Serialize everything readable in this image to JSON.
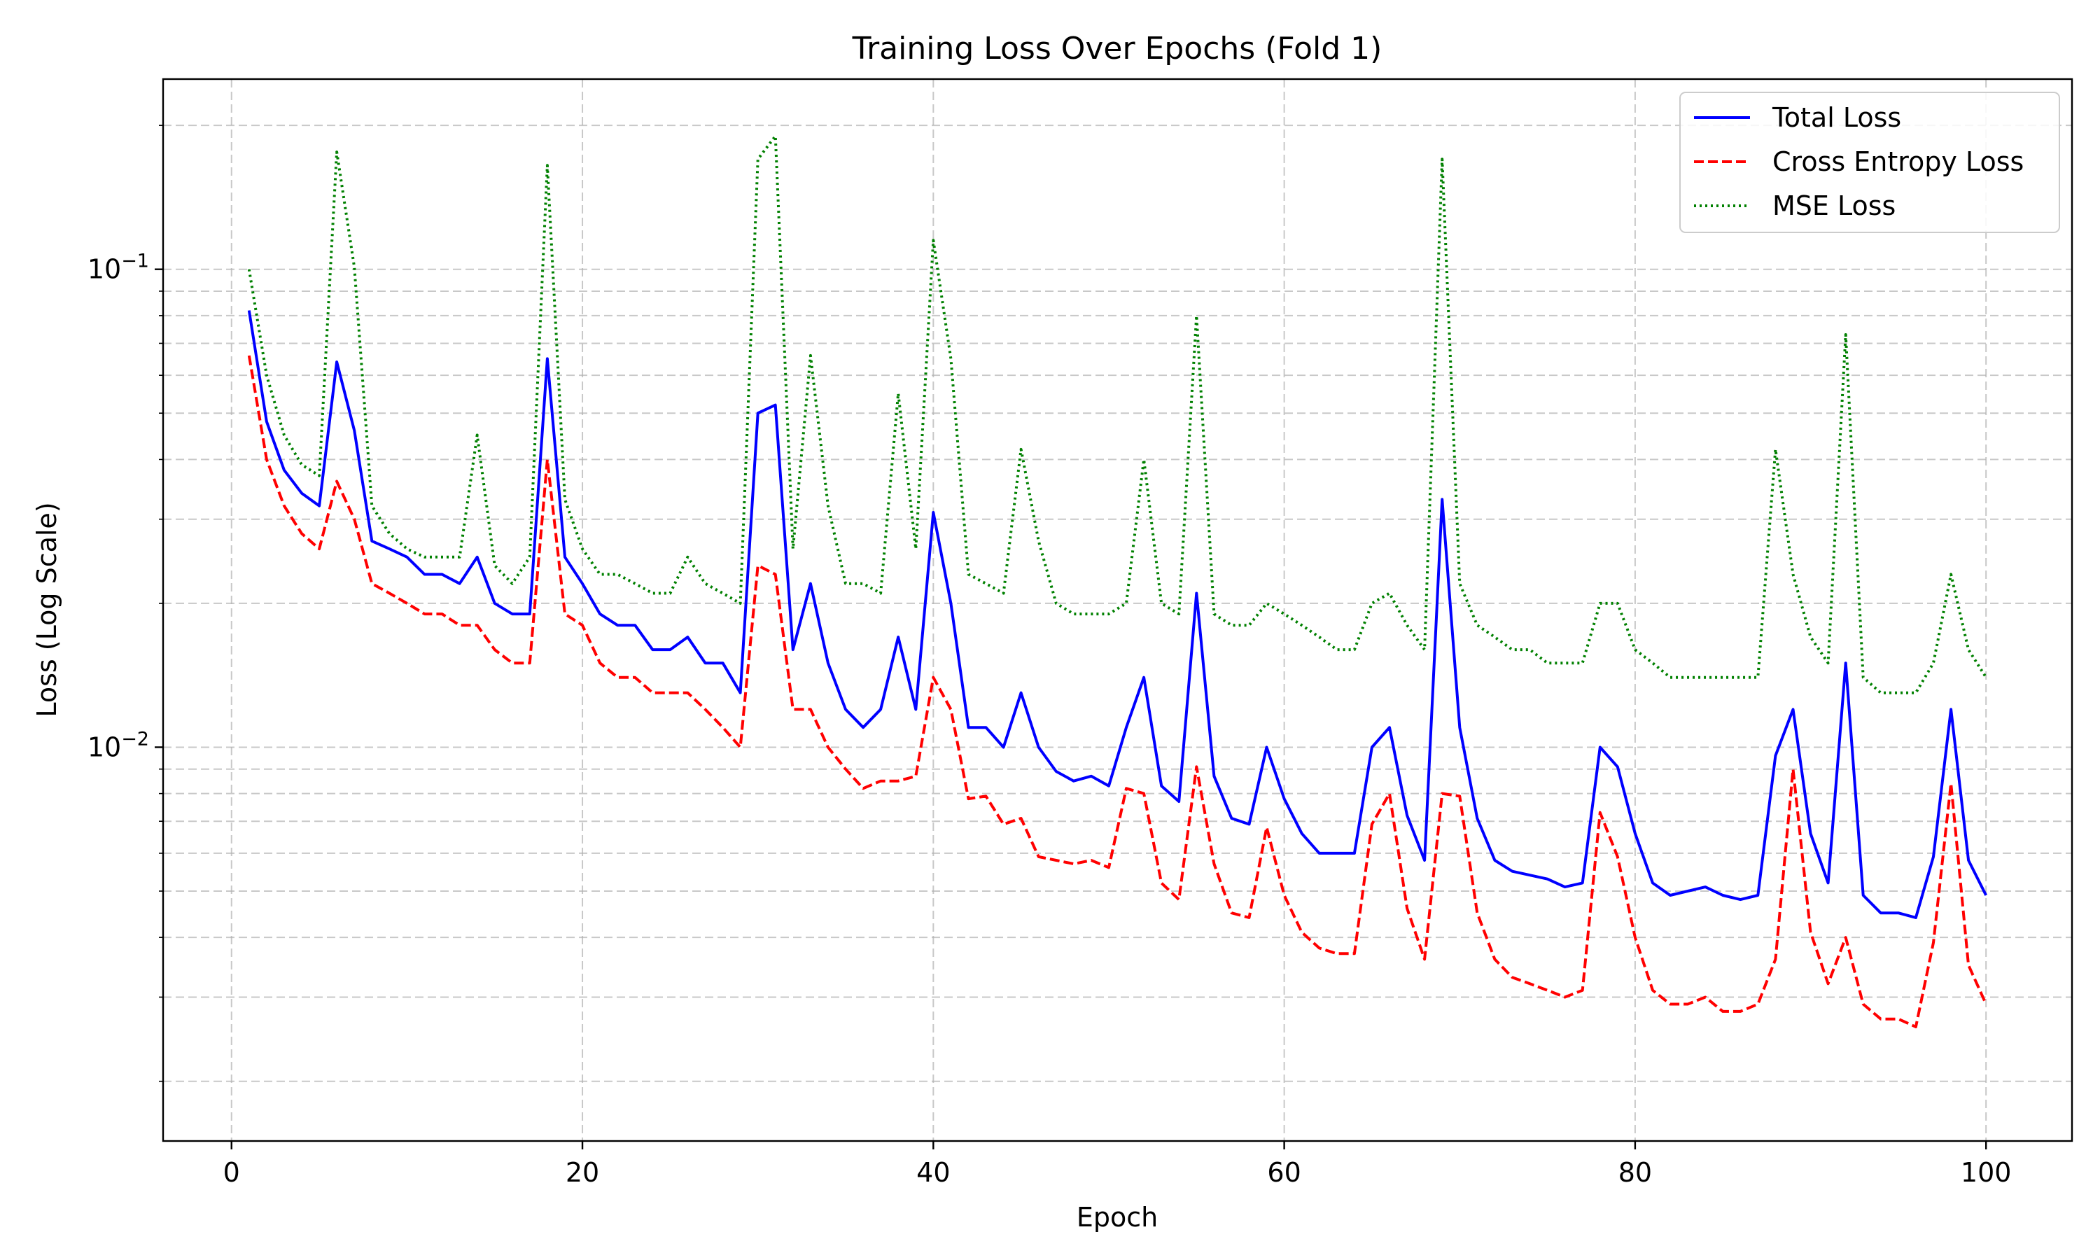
{
  "chart_data": {
    "type": "line",
    "title": "Training Loss Over Epochs (Fold 1)",
    "xlabel": "Epoch",
    "ylabel": "Loss (Log Scale)",
    "xlim": [
      -3.9,
      104.9
    ],
    "ylim": [
      0.0015,
      0.25
    ],
    "yscale": "log",
    "grid": true,
    "legend_position": "upper right",
    "x_ticks": [
      0,
      20,
      40,
      60,
      80,
      100
    ],
    "y_ticks": [
      {
        "value": 0.01,
        "base": "10",
        "exp": "−2"
      },
      {
        "value": 0.1,
        "base": "10",
        "exp": "−1"
      }
    ],
    "x": [
      1,
      2,
      3,
      4,
      5,
      6,
      7,
      8,
      9,
      10,
      11,
      12,
      13,
      14,
      15,
      16,
      17,
      18,
      19,
      20,
      21,
      22,
      23,
      24,
      25,
      26,
      27,
      28,
      29,
      30,
      31,
      32,
      33,
      34,
      35,
      36,
      37,
      38,
      39,
      40,
      41,
      42,
      43,
      44,
      45,
      46,
      47,
      48,
      49,
      50,
      51,
      52,
      53,
      54,
      55,
      56,
      57,
      58,
      59,
      60,
      61,
      62,
      63,
      64,
      65,
      66,
      67,
      68,
      69,
      70,
      71,
      72,
      73,
      74,
      75,
      76,
      77,
      78,
      79,
      80,
      81,
      82,
      83,
      84,
      85,
      86,
      87,
      88,
      89,
      90,
      91,
      92,
      93,
      94,
      95,
      96,
      97,
      98,
      99,
      100
    ],
    "series": [
      {
        "name": "Total Loss",
        "color": "#0000ff",
        "style": "solid",
        "values": [
          0.082,
          0.048,
          0.038,
          0.034,
          0.032,
          0.064,
          0.046,
          0.027,
          0.026,
          0.025,
          0.023,
          0.023,
          0.022,
          0.025,
          0.02,
          0.019,
          0.019,
          0.065,
          0.025,
          0.022,
          0.019,
          0.018,
          0.018,
          0.016,
          0.016,
          0.017,
          0.015,
          0.015,
          0.013,
          0.05,
          0.052,
          0.016,
          0.022,
          0.015,
          0.012,
          0.011,
          0.012,
          0.017,
          0.012,
          0.031,
          0.02,
          0.011,
          0.011,
          0.01,
          0.013,
          0.01,
          0.0089,
          0.0085,
          0.0087,
          0.0083,
          0.011,
          0.014,
          0.0083,
          0.0077,
          0.021,
          0.0087,
          0.0071,
          0.0069,
          0.01,
          0.0078,
          0.0066,
          0.006,
          0.006,
          0.006,
          0.01,
          0.011,
          0.0072,
          0.0058,
          0.033,
          0.011,
          0.0071,
          0.0058,
          0.0055,
          0.0054,
          0.0053,
          0.0051,
          0.0052,
          0.01,
          0.0091,
          0.0066,
          0.0052,
          0.0049,
          0.005,
          0.0051,
          0.0049,
          0.0048,
          0.0049,
          0.0096,
          0.012,
          0.0066,
          0.0052,
          0.015,
          0.0049,
          0.0045,
          0.0045,
          0.0044,
          0.0059,
          0.012,
          0.0058,
          0.0049
        ]
      },
      {
        "name": "Cross Entropy Loss",
        "color": "#ff0000",
        "style": "dashed",
        "values": [
          0.066,
          0.04,
          0.032,
          0.028,
          0.026,
          0.036,
          0.03,
          0.022,
          0.021,
          0.02,
          0.019,
          0.019,
          0.018,
          0.018,
          0.016,
          0.015,
          0.015,
          0.04,
          0.019,
          0.018,
          0.015,
          0.014,
          0.014,
          0.013,
          0.013,
          0.013,
          0.012,
          0.011,
          0.01,
          0.024,
          0.023,
          0.012,
          0.012,
          0.01,
          0.009,
          0.0082,
          0.0085,
          0.0085,
          0.0087,
          0.014,
          0.012,
          0.0078,
          0.0079,
          0.0069,
          0.0071,
          0.0059,
          0.0058,
          0.0057,
          0.0058,
          0.0056,
          0.0082,
          0.008,
          0.0052,
          0.0048,
          0.0091,
          0.0057,
          0.0045,
          0.0044,
          0.0068,
          0.0049,
          0.0041,
          0.0038,
          0.0037,
          0.0037,
          0.0069,
          0.008,
          0.0046,
          0.0036,
          0.008,
          0.0079,
          0.0045,
          0.0036,
          0.0033,
          0.0032,
          0.0031,
          0.003,
          0.0031,
          0.0073,
          0.0059,
          0.004,
          0.0031,
          0.0029,
          0.0029,
          0.003,
          0.0028,
          0.0028,
          0.0029,
          0.0036,
          0.009,
          0.0041,
          0.0032,
          0.004,
          0.0029,
          0.0027,
          0.0027,
          0.0026,
          0.0039,
          0.0084,
          0.0035,
          0.0029
        ]
      },
      {
        "name": "MSE Loss",
        "color": "#008000",
        "style": "dotted",
        "values": [
          0.1,
          0.06,
          0.045,
          0.039,
          0.037,
          0.176,
          0.101,
          0.032,
          0.028,
          0.026,
          0.025,
          0.025,
          0.025,
          0.045,
          0.024,
          0.022,
          0.025,
          0.165,
          0.033,
          0.026,
          0.023,
          0.023,
          0.022,
          0.021,
          0.021,
          0.025,
          0.022,
          0.021,
          0.02,
          0.17,
          0.19,
          0.026,
          0.066,
          0.032,
          0.022,
          0.022,
          0.021,
          0.055,
          0.026,
          0.115,
          0.065,
          0.023,
          0.022,
          0.021,
          0.042,
          0.027,
          0.02,
          0.019,
          0.019,
          0.019,
          0.02,
          0.04,
          0.02,
          0.019,
          0.08,
          0.019,
          0.018,
          0.018,
          0.02,
          0.019,
          0.018,
          0.017,
          0.016,
          0.016,
          0.02,
          0.021,
          0.018,
          0.016,
          0.17,
          0.022,
          0.018,
          0.017,
          0.016,
          0.016,
          0.015,
          0.015,
          0.015,
          0.02,
          0.02,
          0.016,
          0.015,
          0.014,
          0.014,
          0.014,
          0.014,
          0.014,
          0.014,
          0.042,
          0.023,
          0.017,
          0.015,
          0.073,
          0.014,
          0.013,
          0.013,
          0.013,
          0.015,
          0.023,
          0.016,
          0.014
        ]
      }
    ]
  }
}
